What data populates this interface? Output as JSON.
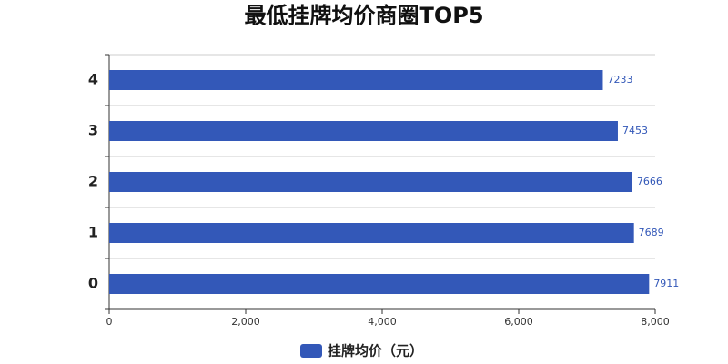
{
  "chart_data": {
    "type": "bar",
    "orientation": "horizontal",
    "title": "最低挂牌均价商圈TOP5",
    "categories": [
      "0",
      "1",
      "2",
      "3",
      "4"
    ],
    "series": [
      {
        "name": "挂牌均价（元）",
        "color": "#3358b8",
        "values": [
          7911,
          7689,
          7666,
          7453,
          7233
        ]
      }
    ],
    "xlim": [
      0,
      8000
    ],
    "xticks": [
      0,
      {
        "value": 2000,
        "label": "2,000"
      },
      {
        "value": 4000,
        "label": "4,000"
      },
      {
        "value": 6000,
        "label": "6,000"
      },
      {
        "value": 8000,
        "label": "8,000"
      }
    ],
    "legend": "bottom"
  }
}
